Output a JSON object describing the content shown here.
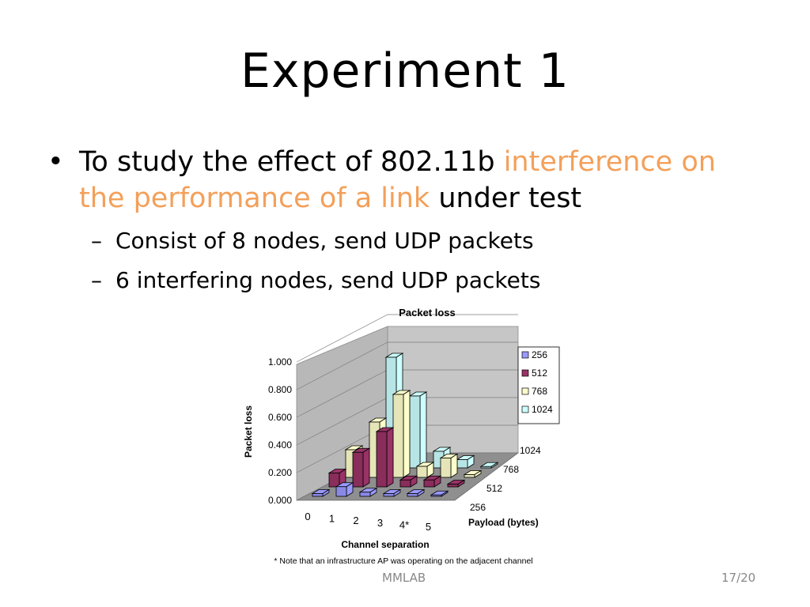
{
  "slide": {
    "title": "Experiment 1",
    "bullet1_a": "To study the effect of 802.11b ",
    "bullet1_b": "interference on the performance of a link",
    "bullet1_c": " under test",
    "sub1": "Consist of 8 nodes, send UDP packets",
    "sub2": "6 interfering nodes, send UDP packets",
    "bullet_glyph": "•",
    "dash_glyph": "–",
    "accent_color": "#f3a05a"
  },
  "footer": {
    "center": "MMLAB",
    "page": "17/20"
  },
  "chart_data": {
    "type": "bar",
    "subtype": "3d-grouped",
    "title": "Packet loss",
    "ylabel": "Packet loss",
    "xlabel": "Channel separation",
    "zlabel": "Payload (bytes)",
    "note": "* Note that an infrastructure AP was operating on the adjacent channel",
    "categories": [
      "0",
      "1",
      "2",
      "3",
      "4*",
      "5"
    ],
    "y_ticks": [
      "0.000",
      "0.200",
      "0.400",
      "0.600",
      "0.800",
      "1.000"
    ],
    "ylim": [
      0,
      1
    ],
    "legend_position": "right",
    "series": [
      {
        "name": "256",
        "color": "#9999ff",
        "values": [
          0.02,
          0.07,
          0.03,
          0.02,
          0.02,
          0.01
        ]
      },
      {
        "name": "512",
        "color": "#993366",
        "values": [
          0.1,
          0.25,
          0.4,
          0.05,
          0.05,
          0.02
        ]
      },
      {
        "name": "768",
        "color": "#ffffcc",
        "values": [
          0.2,
          0.4,
          0.6,
          0.08,
          0.14,
          0.02
        ]
      },
      {
        "name": "1024",
        "color": "#ccffff",
        "values": [
          0.06,
          0.8,
          0.52,
          0.12,
          0.06,
          0.01
        ]
      }
    ]
  }
}
